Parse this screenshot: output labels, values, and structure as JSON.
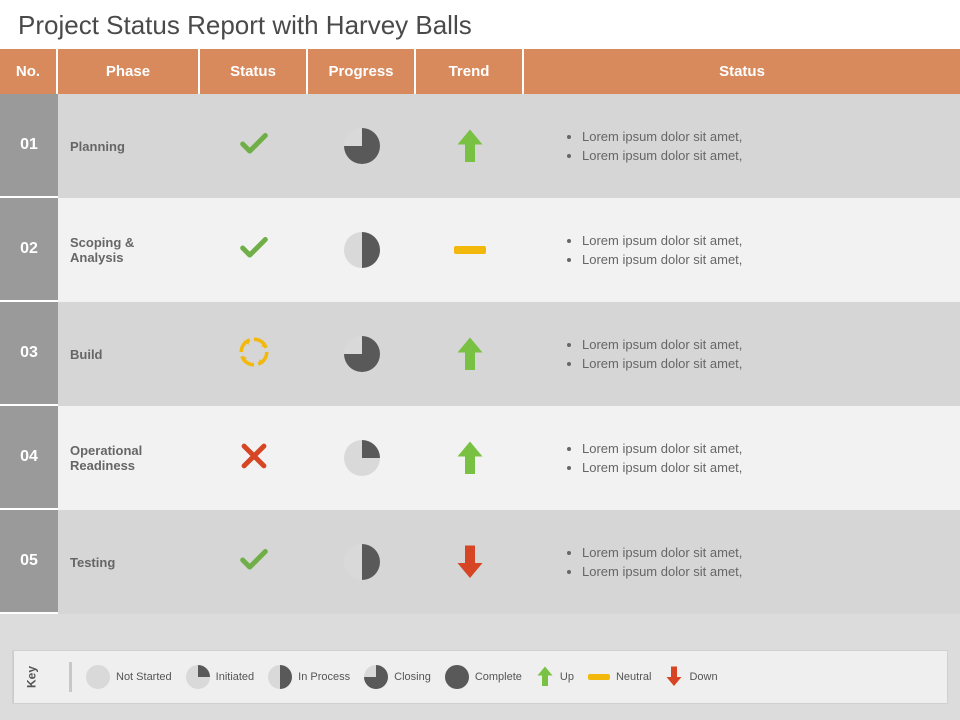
{
  "title": "Project Status Report with Harvey Balls",
  "colors": {
    "header_bg": "#d88a5d",
    "header_text": "#ffffff",
    "row_num_bg": "#9a9a9a",
    "row_even": "#d6d6d6",
    "row_odd": "#f2f2f2",
    "text": "#666666",
    "title_text": "#4a4a4a",
    "harvey_dark": "#595959",
    "harvey_light": "#d9d9d9",
    "check": "#70af47",
    "cross": "#d64524",
    "cycle": "#f2b80b",
    "arrow_up": "#79c143",
    "arrow_down": "#d64524",
    "neutral": "#f2b80b",
    "legend_bg": "#efefef"
  },
  "columns": [
    "No.",
    "Phase",
    "Status",
    "Progress",
    "Trend",
    "Status"
  ],
  "rows": [
    {
      "no": "01",
      "phase": "Planning",
      "status_icon": "check",
      "progress_pct": 75,
      "trend": "up",
      "notes": [
        "Lorem ipsum dolor sit amet,",
        "Lorem ipsum dolor sit amet,"
      ]
    },
    {
      "no": "02",
      "phase": "Scoping & Analysis",
      "status_icon": "check",
      "progress_pct": 50,
      "trend": "neutral",
      "notes": [
        "Lorem ipsum dolor sit amet,",
        "Lorem ipsum dolor sit amet,"
      ]
    },
    {
      "no": "03",
      "phase": "Build",
      "status_icon": "cycle",
      "progress_pct": 75,
      "trend": "up",
      "notes": [
        "Lorem ipsum dolor sit amet,",
        "Lorem ipsum dolor sit amet,"
      ]
    },
    {
      "no": "04",
      "phase": "Operational Readiness",
      "status_icon": "cross",
      "progress_pct": 25,
      "trend": "up",
      "notes": [
        "Lorem ipsum dolor sit amet,",
        "Lorem ipsum dolor sit amet,"
      ]
    },
    {
      "no": "05",
      "phase": "Testing",
      "status_icon": "check",
      "progress_pct": 50,
      "trend": "down",
      "notes": [
        "Lorem ipsum dolor sit amet,",
        "Lorem ipsum dolor sit amet,"
      ]
    }
  ],
  "legend": {
    "label": "Key",
    "items": [
      {
        "type": "harvey",
        "pct": 0,
        "label": "Not Started"
      },
      {
        "type": "harvey",
        "pct": 25,
        "label": "Initiated"
      },
      {
        "type": "harvey",
        "pct": 50,
        "label": "In Process"
      },
      {
        "type": "harvey",
        "pct": 75,
        "label": "Closing"
      },
      {
        "type": "harvey",
        "pct": 100,
        "label": "Complete"
      },
      {
        "type": "arrow",
        "dir": "up",
        "label": "Up"
      },
      {
        "type": "neutral",
        "label": "Neutral"
      },
      {
        "type": "arrow",
        "dir": "down",
        "label": "Down"
      }
    ]
  }
}
